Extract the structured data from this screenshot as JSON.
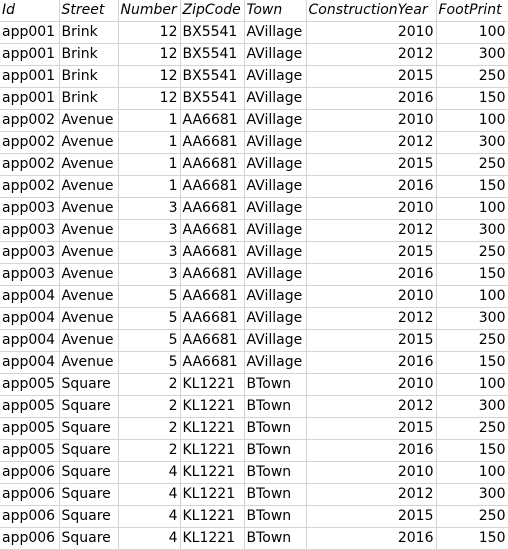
{
  "sheet": {
    "headers": [
      "Id",
      "Street",
      "Number",
      "ZipCode",
      "Town",
      "ConstructionYear",
      "FootPrint"
    ],
    "rows": [
      [
        "app001",
        "Brink",
        "12",
        "BX5541",
        "AVillage",
        "2010",
        "100"
      ],
      [
        "app001",
        "Brink",
        "12",
        "BX5541",
        "AVillage",
        "2012",
        "300"
      ],
      [
        "app001",
        "Brink",
        "12",
        "BX5541",
        "AVillage",
        "2015",
        "250"
      ],
      [
        "app001",
        "Brink",
        "12",
        "BX5541",
        "AVillage",
        "2016",
        "150"
      ],
      [
        "app002",
        "Avenue",
        "1",
        "AA6681",
        "AVillage",
        "2010",
        "100"
      ],
      [
        "app002",
        "Avenue",
        "1",
        "AA6681",
        "AVillage",
        "2012",
        "300"
      ],
      [
        "app002",
        "Avenue",
        "1",
        "AA6681",
        "AVillage",
        "2015",
        "250"
      ],
      [
        "app002",
        "Avenue",
        "1",
        "AA6681",
        "AVillage",
        "2016",
        "150"
      ],
      [
        "app003",
        "Avenue",
        "3",
        "AA6681",
        "AVillage",
        "2010",
        "100"
      ],
      [
        "app003",
        "Avenue",
        "3",
        "AA6681",
        "AVillage",
        "2012",
        "300"
      ],
      [
        "app003",
        "Avenue",
        "3",
        "AA6681",
        "AVillage",
        "2015",
        "250"
      ],
      [
        "app003",
        "Avenue",
        "3",
        "AA6681",
        "AVillage",
        "2016",
        "150"
      ],
      [
        "app004",
        "Avenue",
        "5",
        "AA6681",
        "AVillage",
        "2010",
        "100"
      ],
      [
        "app004",
        "Avenue",
        "5",
        "AA6681",
        "AVillage",
        "2012",
        "300"
      ],
      [
        "app004",
        "Avenue",
        "5",
        "AA6681",
        "AVillage",
        "2015",
        "250"
      ],
      [
        "app004",
        "Avenue",
        "5",
        "AA6681",
        "AVillage",
        "2016",
        "150"
      ],
      [
        "app005",
        "Square",
        "2",
        "KL1221",
        "BTown",
        "2010",
        "100"
      ],
      [
        "app005",
        "Square",
        "2",
        "KL1221",
        "BTown",
        "2012",
        "300"
      ],
      [
        "app005",
        "Square",
        "2",
        "KL1221",
        "BTown",
        "2015",
        "250"
      ],
      [
        "app005",
        "Square",
        "2",
        "KL1221",
        "BTown",
        "2016",
        "150"
      ],
      [
        "app006",
        "Square",
        "4",
        "KL1221",
        "BTown",
        "2010",
        "100"
      ],
      [
        "app006",
        "Square",
        "4",
        "KL1221",
        "BTown",
        "2012",
        "300"
      ],
      [
        "app006",
        "Square",
        "4",
        "KL1221",
        "BTown",
        "2015",
        "250"
      ],
      [
        "app006",
        "Square",
        "4",
        "KL1221",
        "BTown",
        "2016",
        "150"
      ]
    ]
  }
}
